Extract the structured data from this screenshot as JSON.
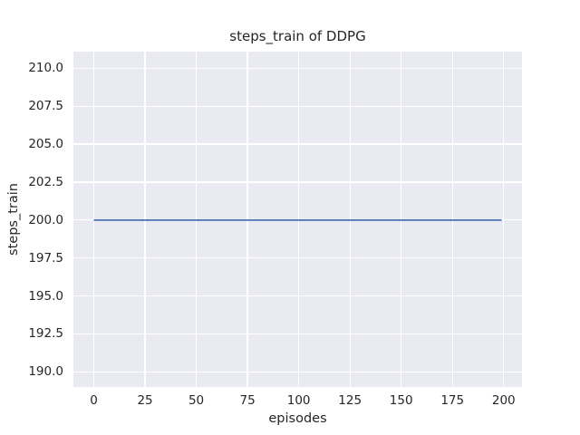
{
  "style": {
    "figure_bg": "#ffffff",
    "plot_bg": "#eaeaf2",
    "grid_color": "#ffffff",
    "text_color": "#262626",
    "line_color": "#4c72b0"
  },
  "chart_data": {
    "type": "line",
    "title": "steps_train of DDPG",
    "xlabel": "episodes",
    "ylabel": "steps_train",
    "xlim": [
      -9.95,
      208.95
    ],
    "ylim": [
      189.0,
      211.1
    ],
    "grid": true,
    "legend_position": "none",
    "xticks": {
      "values": [
        0,
        25,
        50,
        75,
        100,
        125,
        150,
        175,
        200
      ],
      "labels": [
        "0",
        "25",
        "50",
        "75",
        "100",
        "125",
        "150",
        "175",
        "200"
      ]
    },
    "yticks": {
      "values": [
        190.0,
        192.5,
        195.0,
        197.5,
        200.0,
        202.5,
        205.0,
        207.5,
        210.0
      ],
      "labels": [
        "190.0",
        "192.5",
        "195.0",
        "197.5",
        "200.0",
        "202.5",
        "205.0",
        "207.5",
        "210.0"
      ]
    },
    "series": [
      {
        "name": "steps_train",
        "color": "#4c72b0",
        "linewidth": 1.8,
        "x": [
          0,
          199
        ],
        "y": [
          200,
          200
        ],
        "note": "constant value 200 for all episodes 0-199"
      }
    ]
  }
}
